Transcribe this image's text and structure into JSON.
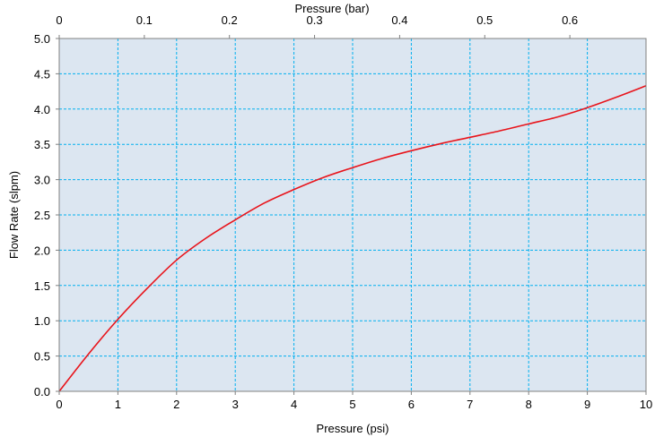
{
  "chart_data": {
    "type": "line",
    "xlabel": "Pressure (psi)",
    "x2label": "Pressure (bar)",
    "ylabel": "Flow Rate (slpm)",
    "xlim": [
      0,
      10
    ],
    "x2lim": [
      0,
      0.6895
    ],
    "ylim": [
      0,
      5
    ],
    "x_ticks": [
      "0",
      "1",
      "2",
      "3",
      "4",
      "5",
      "6",
      "7",
      "8",
      "9",
      "10"
    ],
    "x2_ticks": [
      "0",
      "0.1",
      "0.2",
      "0.3",
      "0.4",
      "0.5",
      "0.6"
    ],
    "x2_tick_values": [
      0,
      0.1,
      0.2,
      0.3,
      0.4,
      0.5,
      0.6
    ],
    "y_ticks": [
      "0.0",
      "0.5",
      "1.0",
      "1.5",
      "2.0",
      "2.5",
      "3.0",
      "3.5",
      "4.0",
      "4.5",
      "5.0"
    ],
    "grid": true,
    "colors": {
      "plot_bg": "#dce6f1",
      "grid": "#00b0f0",
      "line": "#e8141b",
      "axis": "#808080"
    },
    "series": [
      {
        "x": [
          0,
          0.5,
          1,
          1.5,
          2,
          2.5,
          3,
          3.5,
          4,
          4.5,
          5,
          5.5,
          6,
          6.5,
          7,
          7.5,
          8,
          8.5,
          9,
          9.5,
          10
        ],
        "y": [
          0,
          0.53,
          1.02,
          1.46,
          1.86,
          2.17,
          2.43,
          2.67,
          2.86,
          3.03,
          3.17,
          3.3,
          3.41,
          3.51,
          3.6,
          3.69,
          3.79,
          3.89,
          4.02,
          4.17,
          4.33
        ]
      }
    ]
  }
}
